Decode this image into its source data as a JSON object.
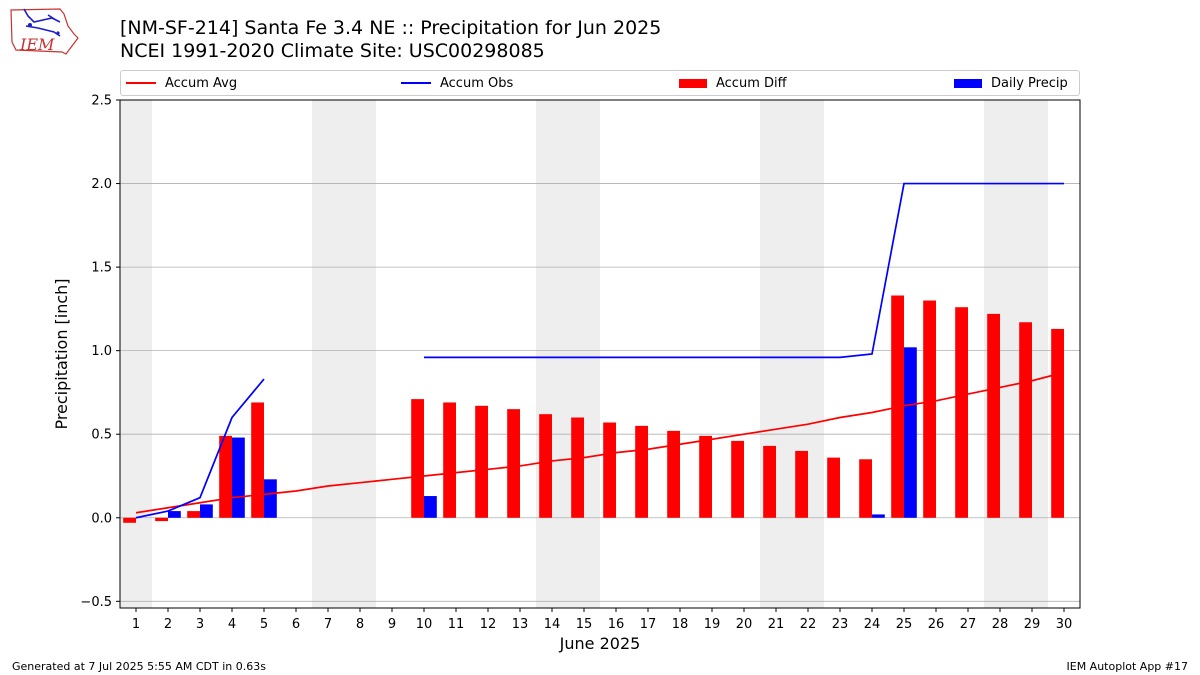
{
  "header": {
    "title_line1": "[NM-SF-214] Santa Fe 3.4 NE :: Precipitation for Jun 2025",
    "title_line2": "NCEI 1991-2020 Climate Site: USC00298085",
    "logo_text": "IEM"
  },
  "footer": {
    "generated": "Generated at 7 Jul 2025 5:55 AM CDT in 0.63s",
    "app": "IEM Autoplot App #17"
  },
  "colors": {
    "accum_avg": "#ff0000",
    "accum_obs": "#0000ff",
    "accum_diff": "#ff0000",
    "daily_precip": "#0000ff",
    "weekend_shade": "#eeeeee",
    "grid": "#b0b0b0"
  },
  "chart_data": {
    "type": "bar",
    "title": "[NM-SF-214] Santa Fe 3.4 NE :: Precipitation for Jun 2025",
    "subtitle": "NCEI 1991-2020 Climate Site: USC00298085",
    "xlabel": "June 2025",
    "ylabel": "Precipitation [inch]",
    "ylim": [
      -0.54,
      2.5
    ],
    "xlim": [
      0.5,
      30.5
    ],
    "yticks": [
      -0.5,
      0.0,
      0.5,
      1.0,
      1.5,
      2.0,
      2.5
    ],
    "ytick_labels": [
      "−0.5",
      "0.0",
      "0.5",
      "1.0",
      "1.5",
      "2.0",
      "2.5"
    ],
    "x": [
      1,
      2,
      3,
      4,
      5,
      6,
      7,
      8,
      9,
      10,
      11,
      12,
      13,
      14,
      15,
      16,
      17,
      18,
      19,
      20,
      21,
      22,
      23,
      24,
      25,
      26,
      27,
      28,
      29,
      30
    ],
    "grid": "horizontal",
    "legend_position": "top",
    "shaded_days": [
      1,
      7,
      8,
      14,
      15,
      21,
      22,
      28,
      29
    ],
    "series": [
      {
        "name": "Accum Avg",
        "kind": "line",
        "values": [
          0.03,
          0.06,
          0.09,
          0.12,
          0.14,
          0.16,
          0.19,
          0.21,
          0.23,
          0.25,
          0.27,
          0.29,
          0.31,
          0.34,
          0.36,
          0.39,
          0.41,
          0.44,
          0.47,
          0.5,
          0.53,
          0.56,
          0.6,
          0.63,
          0.67,
          0.7,
          0.74,
          0.78,
          0.82,
          0.87
        ]
      },
      {
        "name": "Accum Obs",
        "kind": "line",
        "values": [
          0.0,
          0.04,
          0.12,
          0.6,
          0.83,
          null,
          null,
          null,
          null,
          0.96,
          0.96,
          0.96,
          0.96,
          0.96,
          0.96,
          0.96,
          0.96,
          0.96,
          0.96,
          0.96,
          0.96,
          0.96,
          0.96,
          0.98,
          2.0,
          2.0,
          2.0,
          2.0,
          2.0,
          2.0
        ]
      },
      {
        "name": "Accum Diff",
        "kind": "bar",
        "values": [
          -0.03,
          -0.02,
          0.04,
          0.49,
          0.69,
          null,
          null,
          null,
          null,
          0.71,
          0.69,
          0.67,
          0.65,
          0.62,
          0.6,
          0.57,
          0.55,
          0.52,
          0.49,
          0.46,
          0.43,
          0.4,
          0.36,
          0.35,
          1.33,
          1.3,
          1.26,
          1.22,
          1.17,
          1.13
        ]
      },
      {
        "name": "Daily Precip",
        "kind": "bar",
        "values": [
          0.0,
          0.04,
          0.08,
          0.48,
          0.23,
          null,
          null,
          null,
          null,
          0.13,
          0.0,
          0.0,
          0.0,
          0.0,
          0.0,
          0.0,
          0.0,
          0.0,
          0.0,
          0.0,
          0.0,
          0.0,
          0.0,
          0.02,
          1.02,
          0.0,
          0.0,
          0.0,
          0.0,
          0.0
        ]
      }
    ]
  }
}
